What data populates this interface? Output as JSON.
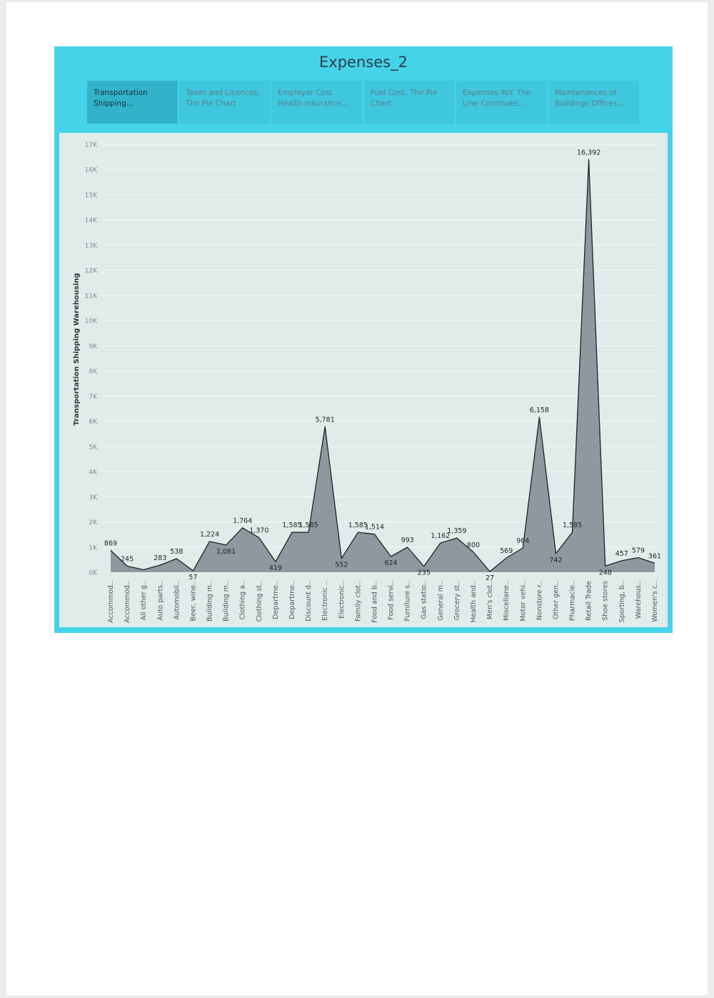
{
  "dashboard": {
    "title": "Expenses_2",
    "tabs": [
      {
        "label": "Transportation Shipping Warehousin..",
        "active": true
      },
      {
        "label": "Taxes and Licences. The Pie Chart",
        "active": false
      },
      {
        "label": "Employer Cost Health insurance and Employ..",
        "active": false
      },
      {
        "label": "Fuel Cost. The Pie Chart",
        "active": false
      },
      {
        "label": "Expenses YoY. The Line Continues Chart",
        "active": false
      },
      {
        "label": "Maintenances of Buildings Offices. The ..",
        "active": false
      }
    ]
  },
  "colors": {
    "background": "#45d3ea",
    "panel": "#e0ecea",
    "area_fill": "#8e999f",
    "line": "#1e2326",
    "tab_active": "#33b3c9",
    "tab_inactive": "#3fc7de"
  },
  "chart_data": {
    "type": "area",
    "title": "",
    "xlabel": "",
    "ylabel": "Transportation Shipping Warehousing",
    "ylim": [
      0,
      17000
    ],
    "yticks": [
      0,
      1000,
      2000,
      3000,
      4000,
      5000,
      6000,
      7000,
      8000,
      9000,
      10000,
      11000,
      12000,
      13000,
      14000,
      15000,
      16000,
      17000
    ],
    "ytick_labels": [
      "0K",
      "1K",
      "2K",
      "3K",
      "4K",
      "5K",
      "6K",
      "7K",
      "8K",
      "9K",
      "10K",
      "11K",
      "12K",
      "13K",
      "14K",
      "15K",
      "16K",
      "17K"
    ],
    "grid": true,
    "categories": [
      "Accommod..",
      "Accommod..",
      "All other g..",
      "Auto parts..",
      "Automobil..",
      "Beer, wine..",
      "Building m..",
      "Building m..",
      "Clothing a..",
      "Clothing st..",
      "Departme..",
      "Departme..",
      "Discount d..",
      "Electronic ..",
      "Electronic..",
      "Family clot..",
      "Food and b..",
      "Food servi..",
      "Furniture s..",
      "Gas statio..",
      "General m..",
      "Grocery st..",
      "Health and..",
      "Men's clot..",
      "Miscellane..",
      "Motor vehi..",
      "Nonstore r..",
      "Other gen..",
      "Pharmacie..",
      "Retail Trade",
      "Shoe stores",
      "Sporting, b..",
      "Warehous..",
      "Women's c.."
    ],
    "values": [
      869,
      245,
      100,
      283,
      538,
      57,
      1224,
      1081,
      1764,
      1370,
      419,
      1585,
      1585,
      5781,
      552,
      1585,
      1514,
      624,
      993,
      235,
      1162,
      1359,
      800,
      27,
      569,
      964,
      6158,
      742,
      1585,
      16392,
      248,
      457,
      579,
      361
    ],
    "value_labels": [
      "869",
      "245",
      "",
      "283",
      "538",
      "57",
      "1,224",
      "1,081",
      "1,764",
      "1,370",
      "419",
      "1,585",
      "1,585",
      "5,781",
      "552",
      "1,585",
      "1,514",
      "624",
      "993",
      "235",
      "1,162",
      "1,359",
      "800",
      "27",
      "569",
      "964",
      "6,158",
      "742",
      "1,585",
      "16,392",
      "248",
      "457",
      "579",
      "361"
    ]
  }
}
